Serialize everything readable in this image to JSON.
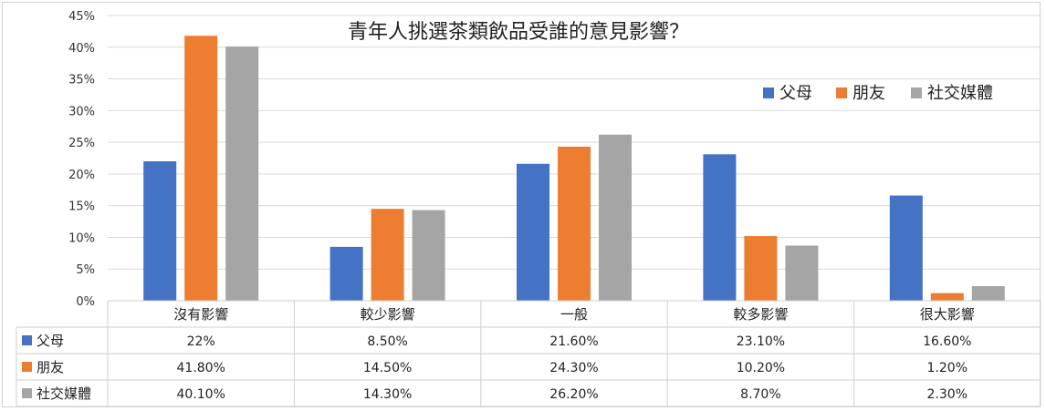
{
  "chart_data": {
    "type": "bar",
    "title": "青年人挑選茶類飲品受誰的意見影響？",
    "categories": [
      "沒有影響",
      "較少影響",
      "一般",
      "較多影響",
      "很大影響"
    ],
    "series": [
      {
        "name": "父母",
        "color": "#4472C4",
        "values": [
          22,
          8.5,
          21.6,
          23.1,
          16.6
        ],
        "labels": [
          "22%",
          "8.50%",
          "21.60%",
          "23.10%",
          "16.60%"
        ]
      },
      {
        "name": "朋友",
        "color": "#ED7D31",
        "values": [
          41.8,
          14.5,
          24.3,
          10.2,
          1.2
        ],
        "labels": [
          "41.80%",
          "14.50%",
          "24.30%",
          "10.20%",
          "1.20%"
        ]
      },
      {
        "name": "社交媒體",
        "color": "#A5A5A5",
        "values": [
          40.1,
          14.3,
          26.2,
          8.7,
          2.3
        ],
        "labels": [
          "40.10%",
          "14.30%",
          "26.20%",
          "8.70%",
          "2.30%"
        ]
      }
    ],
    "y_ticks": [
      "0%",
      "5%",
      "10%",
      "15%",
      "20%",
      "25%",
      "30%",
      "35%",
      "40%",
      "45%"
    ],
    "ylim": [
      0,
      45
    ],
    "grid": true,
    "legend_position": "top-right",
    "data_table": true
  }
}
